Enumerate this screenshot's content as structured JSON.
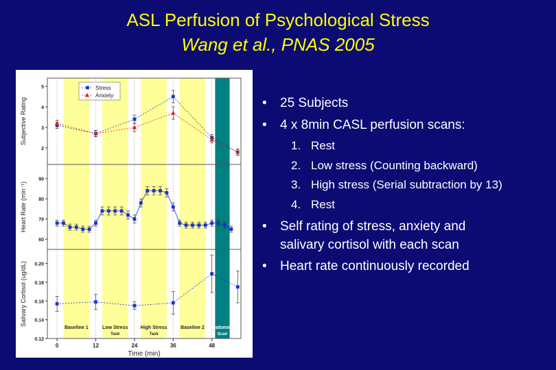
{
  "title": "ASL Perfusion of Psychological Stress",
  "subtitle": "Wang et al., PNAS 2005",
  "bullets": {
    "b1": "25 Subjects",
    "b2": "4 x 8min CASL perfusion scans:",
    "scans": [
      "Rest",
      "Low stress (Counting backward)",
      "High stress (Serial subtraction by 13)",
      "Rest"
    ],
    "scan_nums": [
      "1.",
      "2.",
      "3.",
      "4."
    ],
    "b3_line1": "Self rating of stress, anxiety and",
    "b3_line2": "salivary cortisol with each scan",
    "b4": "Heart rate continuously recorded",
    "symbol": "•"
  },
  "chart_data": {
    "type": "line",
    "xlabel": "Time (min)",
    "xticks": [
      0,
      12,
      24,
      36,
      48
    ],
    "xlim": [
      -3,
      57
    ],
    "band_labels": [
      {
        "name": "Baseline 1",
        "sub": ""
      },
      {
        "name": "Low Stress",
        "sub": "Task"
      },
      {
        "name": "High Stress",
        "sub": "Task"
      },
      {
        "name": "Baseline 2",
        "sub": ""
      },
      {
        "name": "Anatomical",
        "sub": "Scan"
      }
    ],
    "bands": [
      [
        2,
        10
      ],
      [
        14,
        22
      ],
      [
        26,
        34
      ],
      [
        38,
        46
      ],
      [
        49,
        53.5
      ]
    ],
    "band_colors": [
      "#ffff99",
      "#ffff99",
      "#ffff99",
      "#ffff99",
      "#008080"
    ],
    "panels": [
      {
        "ylabel": "Subjective Rating",
        "ylim": [
          1.2,
          5.4
        ],
        "yticks": [
          2,
          3,
          4,
          5
        ],
        "legend": "top-left",
        "series": [
          {
            "name": "Stress",
            "marker": "square",
            "color": "#1a33cc",
            "x": [
              0,
              12,
              24,
              36,
              48,
              56
            ],
            "y": [
              3.1,
              2.7,
              3.4,
              4.5,
              2.5,
              1.8
            ],
            "err": [
              0.15,
              0.15,
              0.2,
              0.3,
              0.15,
              0.15
            ]
          },
          {
            "name": "Anxiety",
            "marker": "triangle",
            "color": "#e0201e",
            "x": [
              0,
              12,
              24,
              36,
              48,
              56
            ],
            "y": [
              3.2,
              2.7,
              3.0,
              3.7,
              2.4,
              1.8
            ],
            "err": [
              0.15,
              0.15,
              0.2,
              0.3,
              0.15,
              0.15
            ]
          }
        ]
      },
      {
        "ylabel": "Heart Rate (min⁻¹)",
        "ylim": [
          55,
          97
        ],
        "yticks": [
          60,
          70,
          80,
          90
        ],
        "series": [
          {
            "name": "",
            "marker": "square",
            "color": "#1a33cc",
            "x": [
              0,
              2,
              4,
              6,
              8,
              10,
              12,
              14,
              16,
              18,
              20,
              22,
              24,
              26,
              28,
              30,
              32,
              34,
              36,
              38,
              40,
              42,
              44,
              46,
              48,
              50,
              52,
              54
            ],
            "y": [
              68,
              68,
              66,
              66,
              65,
              65,
              68,
              74,
              74,
              74,
              74,
              72,
              70,
              78,
              84,
              84,
              84,
              83,
              76,
              68,
              67,
              67,
              67,
              67,
              68,
              68,
              67,
              65
            ],
            "err": [
              1.5,
              1.5,
              1.5,
              1.5,
              1.5,
              1.5,
              1.5,
              2,
              2,
              2,
              2,
              2,
              2,
              2,
              2,
              2,
              2,
              2,
              2,
              1.5,
              1.5,
              1.5,
              1.5,
              1.5,
              1.5,
              1.5,
              1.5,
              1.5
            ]
          }
        ]
      },
      {
        "ylabel": "Salivary Cortisol (ug/dL)",
        "ylim": [
          0.12,
          0.215
        ],
        "yticks": [
          0.12,
          0.14,
          0.16,
          0.18,
          0.2
        ],
        "series": [
          {
            "name": "",
            "marker": "square",
            "color": "#1a33cc",
            "x": [
              0,
              12,
              24,
              36,
              48,
              56
            ],
            "y": [
              0.157,
              0.159,
              0.155,
              0.158,
              0.189,
              0.175
            ],
            "err": [
              0.008,
              0.008,
              0.004,
              0.012,
              0.02,
              0.017
            ]
          }
        ]
      }
    ]
  }
}
